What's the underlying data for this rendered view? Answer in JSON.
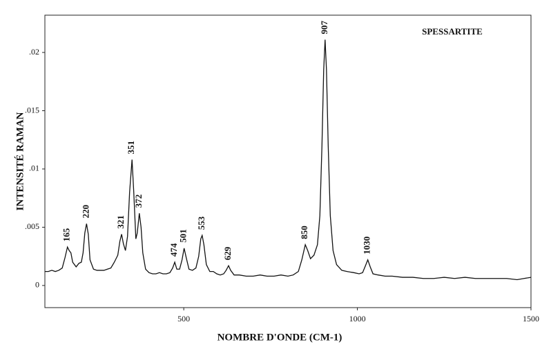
{
  "chart_data": {
    "type": "line",
    "title": "SPESSARTITE",
    "x_label": "NOMBRE D'ONDE (CM-1)",
    "y_label": "INTENSITÉ RAMAN",
    "color": "#111111",
    "xlim": [
      100,
      1500
    ],
    "ylim": [
      -0.0019,
      0.0232
    ],
    "xticks": [
      500,
      1000,
      1500
    ],
    "yticks": [
      0,
      {
        "value": 0.005,
        "label": ".005"
      },
      {
        "value": 0.01,
        "label": ".01"
      },
      {
        "value": 0.015,
        "label": ".015"
      },
      {
        "value": 0.02,
        "label": ".02"
      }
    ],
    "peak_labels": [
      165,
      220,
      321,
      351,
      372,
      474,
      501,
      553,
      629,
      850,
      907,
      1030
    ],
    "x": [
      100,
      110,
      120,
      130,
      140,
      150,
      158,
      165,
      170,
      175,
      180,
      190,
      198,
      205,
      210,
      215,
      220,
      225,
      230,
      240,
      250,
      260,
      270,
      280,
      290,
      300,
      310,
      316,
      321,
      326,
      332,
      338,
      344,
      351,
      356,
      362,
      366,
      372,
      377,
      382,
      390,
      400,
      410,
      420,
      430,
      440,
      450,
      460,
      468,
      474,
      480,
      488,
      495,
      501,
      507,
      515,
      525,
      535,
      543,
      549,
      553,
      558,
      565,
      575,
      585,
      595,
      605,
      615,
      622,
      629,
      635,
      645,
      660,
      680,
      700,
      720,
      740,
      760,
      780,
      800,
      815,
      830,
      840,
      850,
      857,
      865,
      875,
      885,
      892,
      898,
      903,
      907,
      911,
      916,
      922,
      930,
      940,
      955,
      970,
      990,
      1005,
      1015,
      1022,
      1030,
      1037,
      1045,
      1060,
      1080,
      1100,
      1130,
      1160,
      1190,
      1220,
      1250,
      1280,
      1310,
      1340,
      1370,
      1400,
      1430,
      1460,
      1480,
      1500
    ],
    "values": [
      0.0012,
      0.0012,
      0.0013,
      0.0012,
      0.0013,
      0.0015,
      0.0024,
      0.0033,
      0.003,
      0.0028,
      0.002,
      0.0016,
      0.0019,
      0.002,
      0.0028,
      0.0045,
      0.0053,
      0.0044,
      0.0022,
      0.0014,
      0.0013,
      0.0013,
      0.0013,
      0.0014,
      0.0015,
      0.002,
      0.0026,
      0.0038,
      0.0044,
      0.0036,
      0.003,
      0.0042,
      0.008,
      0.0108,
      0.008,
      0.004,
      0.0045,
      0.0062,
      0.005,
      0.0028,
      0.0014,
      0.0011,
      0.001,
      0.001,
      0.0011,
      0.001,
      0.001,
      0.0011,
      0.0015,
      0.002,
      0.0014,
      0.0014,
      0.0022,
      0.0032,
      0.0024,
      0.0014,
      0.0013,
      0.0015,
      0.0025,
      0.004,
      0.0043,
      0.0035,
      0.0018,
      0.0012,
      0.0012,
      0.001,
      0.0009,
      0.001,
      0.0013,
      0.0017,
      0.0013,
      0.0009,
      0.0009,
      0.0008,
      0.0008,
      0.0009,
      0.0008,
      0.0008,
      0.0009,
      0.0008,
      0.0009,
      0.0012,
      0.0022,
      0.0035,
      0.003,
      0.0023,
      0.0026,
      0.0035,
      0.006,
      0.012,
      0.0185,
      0.0211,
      0.0185,
      0.012,
      0.006,
      0.003,
      0.0018,
      0.0013,
      0.0012,
      0.0011,
      0.001,
      0.0011,
      0.0016,
      0.0022,
      0.0016,
      0.001,
      0.0009,
      0.0008,
      0.0008,
      0.0007,
      0.0007,
      0.0006,
      0.0006,
      0.0007,
      0.0006,
      0.0007,
      0.0006,
      0.0006,
      0.0006,
      0.0006,
      0.0005,
      0.0006,
      0.0007
    ]
  }
}
